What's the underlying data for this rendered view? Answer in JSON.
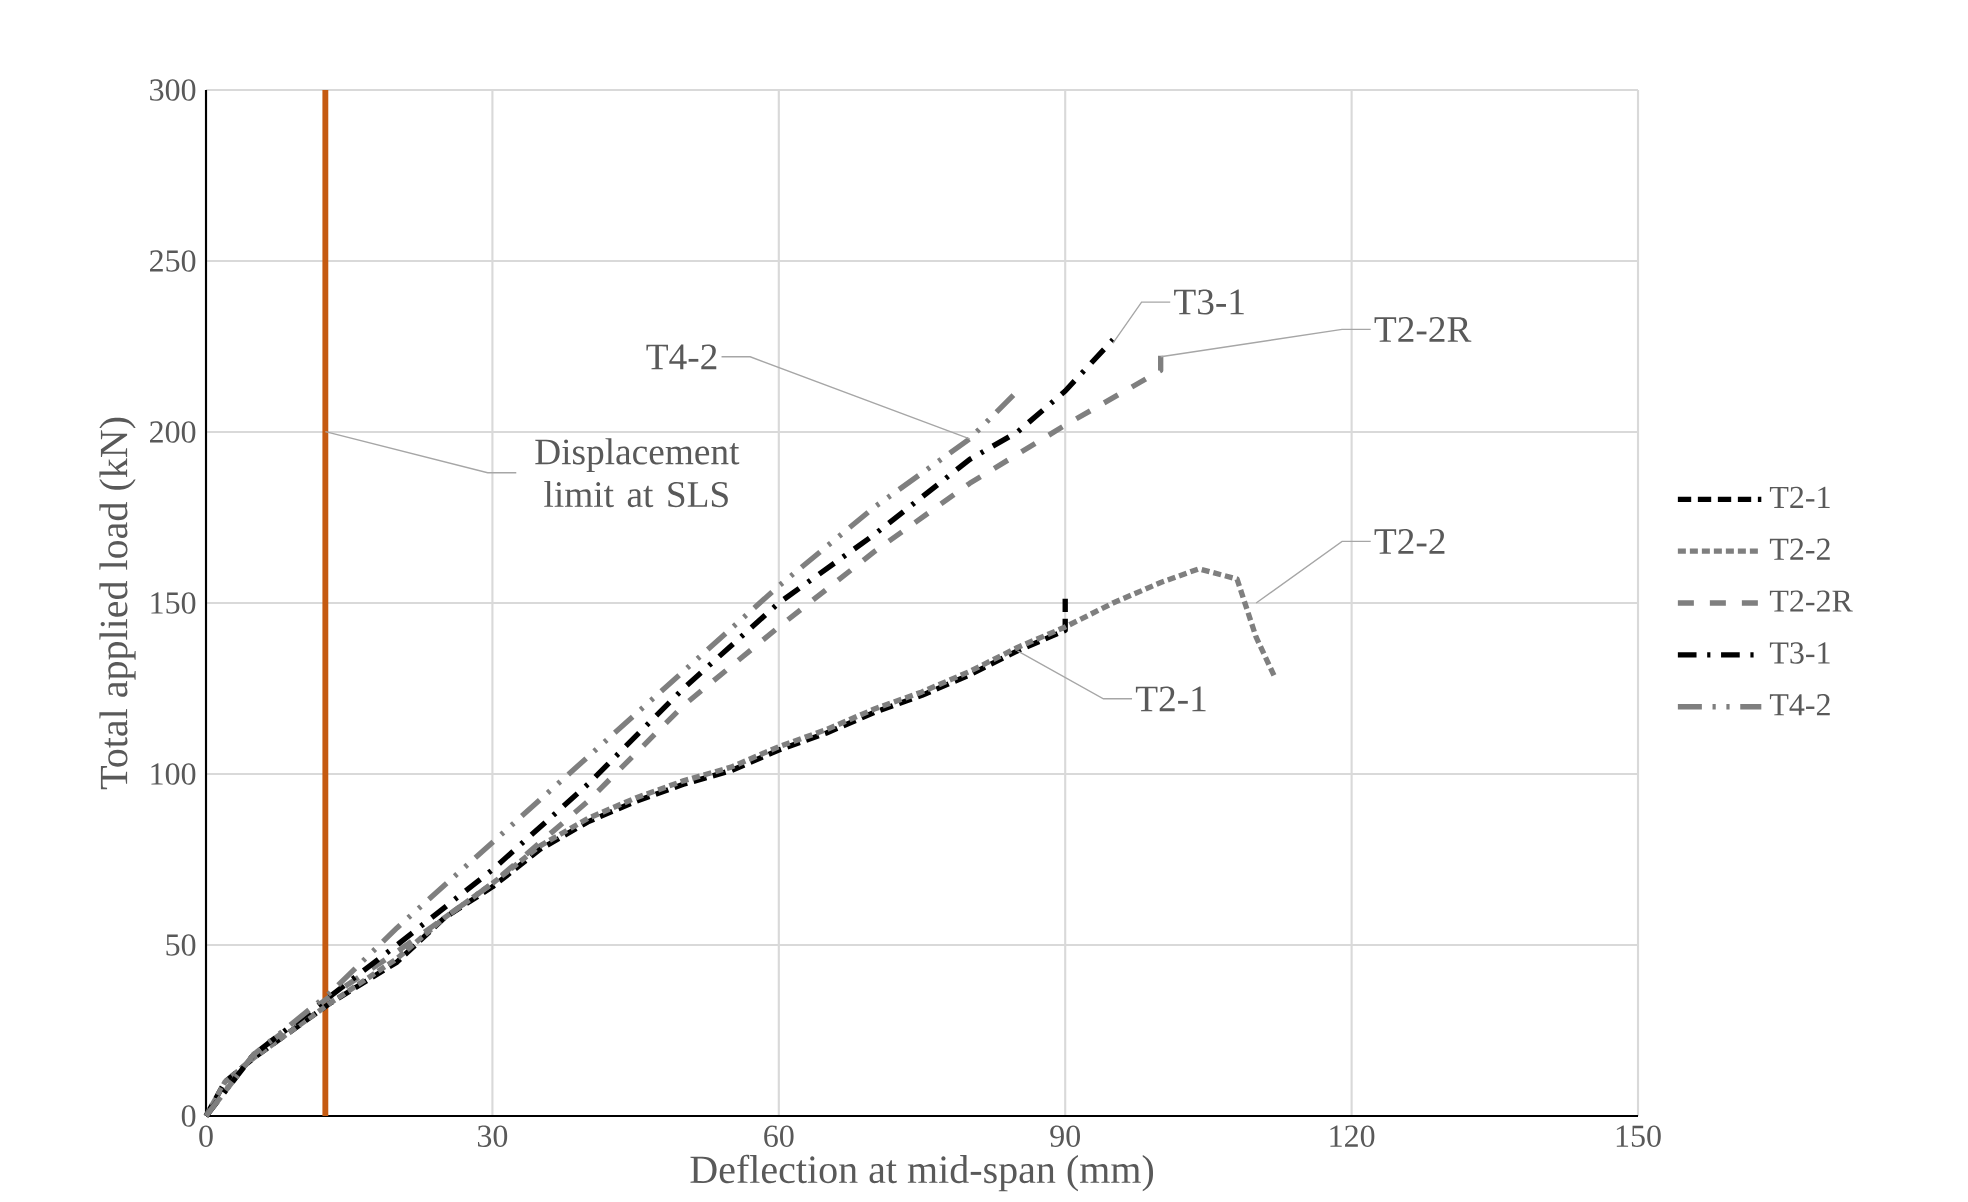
{
  "chart_data": {
    "type": "line",
    "xlabel": "Deflection at mid-span (mm)",
    "ylabel": "Total applied load (kN)",
    "xlim": [
      0,
      150
    ],
    "ylim": [
      0,
      300
    ],
    "xticks": [
      0,
      30,
      60,
      90,
      120,
      150
    ],
    "yticks": [
      0,
      50,
      100,
      150,
      200,
      250,
      300
    ],
    "grid": true,
    "legend": "right",
    "series": [
      {
        "name": "T2-1",
        "color": "#000000",
        "line_style": "dashed",
        "x": [
          0,
          2,
          5,
          10,
          13,
          20,
          25,
          30,
          35,
          40,
          45,
          50,
          55,
          60,
          65,
          70,
          75,
          80,
          85,
          90,
          90
        ],
        "values": [
          0,
          10,
          17,
          27,
          33,
          45,
          58,
          67,
          78,
          86,
          92,
          97,
          101,
          107,
          112,
          118,
          123,
          129,
          136,
          142,
          153
        ]
      },
      {
        "name": "T2-2",
        "color": "#7f7f7f",
        "line_style": "dotted",
        "x": [
          0,
          2,
          5,
          10,
          13,
          20,
          25,
          30,
          35,
          40,
          45,
          50,
          55,
          60,
          65,
          70,
          75,
          80,
          85,
          90,
          95,
          100,
          104,
          108,
          110,
          112
        ],
        "values": [
          0,
          10,
          17,
          27,
          33,
          46,
          58,
          68,
          79,
          87,
          93,
          98,
          102,
          108,
          113,
          119,
          124,
          130,
          137,
          143,
          150,
          156,
          160,
          157,
          140,
          128
        ]
      },
      {
        "name": "T2-2R",
        "color": "#7f7f7f",
        "line_style": "loosely dashed",
        "x": [
          0,
          5,
          13,
          20,
          30,
          40,
          50,
          60,
          70,
          80,
          90,
          100,
          100
        ],
        "values": [
          0,
          18,
          35,
          48,
          68,
          92,
          120,
          143,
          165,
          185,
          202,
          218,
          224
        ]
      },
      {
        "name": "T3-1",
        "color": "#000000",
        "line_style": "dash dot",
        "x": [
          0,
          5,
          13,
          20,
          30,
          40,
          50,
          60,
          70,
          80,
          85,
          90,
          95
        ],
        "values": [
          0,
          18,
          35,
          50,
          72,
          97,
          125,
          150,
          170,
          192,
          200,
          212,
          227
        ]
      },
      {
        "name": "T4-2",
        "color": "#7f7f7f",
        "line_style": "dash dot dot",
        "x": [
          0,
          5,
          13,
          20,
          30,
          40,
          50,
          60,
          70,
          80,
          85
        ],
        "values": [
          0,
          18,
          36,
          55,
          80,
          105,
          130,
          155,
          178,
          198,
          212
        ]
      }
    ],
    "ref_lines": [
      {
        "axis": "x",
        "value": 12.5,
        "label": "Displacement limit at SLS",
        "color": "#c55a11"
      }
    ],
    "annotations": [
      {
        "text": "T4-2",
        "x": 80,
        "y": 198
      },
      {
        "text": "T3-1",
        "x": 95,
        "y": 226
      },
      {
        "text": "T2-2R",
        "x": 100,
        "y": 222
      },
      {
        "text": "T2-2",
        "x": 110,
        "y": 150
      },
      {
        "text": "T2-1",
        "x": 85,
        "y": 136
      }
    ]
  }
}
